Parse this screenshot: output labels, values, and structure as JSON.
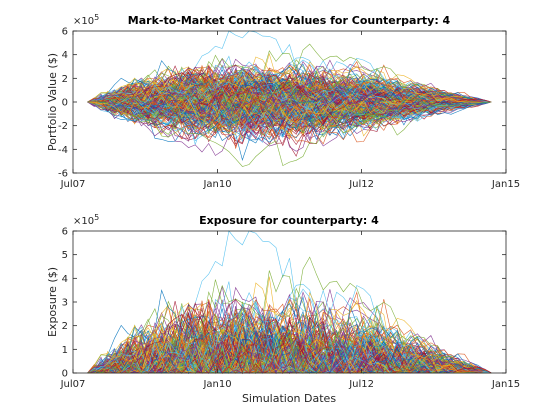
{
  "chart_data": [
    {
      "type": "line",
      "title": "Mark-to-Market Contract Values for Counterparty: 4",
      "ylabel": "Portfolio Value ($)",
      "xlabel": "",
      "y_exponent_label": "×10",
      "y_exponent_power": "5",
      "ylim": [
        -600000,
        600000
      ],
      "yticks": [
        -600000,
        -400000,
        -200000,
        0,
        200000,
        400000,
        600000
      ],
      "ytick_labels": [
        "-6",
        "-4",
        "-2",
        "0",
        "2",
        "4",
        "6"
      ],
      "xlim": [
        "2007-07-01",
        "2015-01-01"
      ],
      "xticks": [
        "2007-07-01",
        "2010-01-01",
        "2012-07-01",
        "2015-01-01"
      ],
      "xtick_labels": [
        "Jul07",
        "Jan10",
        "Jul12",
        "Jan15"
      ],
      "start_date": "2007-10-01",
      "end_date": "2014-10-01",
      "paths_approx": 1000,
      "envelope_peak_positive": 520000,
      "envelope_peak_negative": -450000,
      "grid": false,
      "legend": "none"
    },
    {
      "type": "line",
      "title": "Exposure for counterparty: 4",
      "ylabel": "Exposure ($)",
      "xlabel": "Simulation Dates",
      "y_exponent_label": "×10",
      "y_exponent_power": "5",
      "ylim": [
        0,
        600000
      ],
      "yticks": [
        0,
        100000,
        200000,
        300000,
        400000,
        500000,
        600000
      ],
      "ytick_labels": [
        "0",
        "1",
        "2",
        "3",
        "4",
        "5",
        "6"
      ],
      "xlim": [
        "2007-07-01",
        "2015-01-01"
      ],
      "xticks": [
        "2007-07-01",
        "2010-01-01",
        "2012-07-01",
        "2015-01-01"
      ],
      "xtick_labels": [
        "Jul07",
        "Jan10",
        "Jul12",
        "Jan15"
      ],
      "start_date": "2007-10-01",
      "end_date": "2014-10-01",
      "paths_approx": 1000,
      "envelope_peak_positive": 520000,
      "grid": false,
      "legend": "none"
    }
  ],
  "colors": {
    "series": [
      "#0072BD",
      "#D95319",
      "#EDB120",
      "#7E2F8E",
      "#77AC30",
      "#4DBEEE",
      "#A2142F"
    ],
    "axis": "#262626"
  }
}
